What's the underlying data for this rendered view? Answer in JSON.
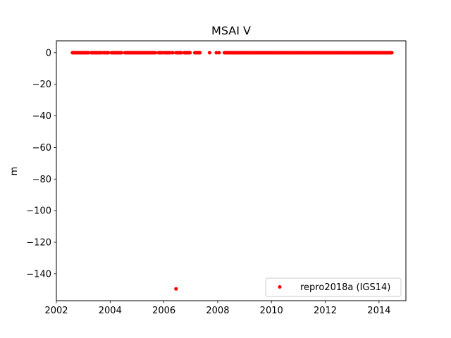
{
  "chart_data": {
    "type": "scatter",
    "title": "MSAI V",
    "xlabel": "",
    "ylabel": "m",
    "xlim": [
      2002,
      2015
    ],
    "ylim": [
      -157,
      7.5
    ],
    "xticks": [
      2002,
      2004,
      2006,
      2008,
      2010,
      2012,
      2014
    ],
    "xtick_labels": [
      "2002",
      "2004",
      "2006",
      "2008",
      "2010",
      "2012",
      "2014"
    ],
    "yticks": [
      0,
      -20,
      -40,
      -60,
      -80,
      -100,
      -120,
      -140
    ],
    "ytick_labels": [
      "0",
      "−20",
      "−40",
      "−60",
      "−80",
      "−100",
      "−120",
      "−140"
    ],
    "grid": false,
    "legend_position": "lower-right",
    "series": [
      {
        "name": "repro2018a (IGS14)",
        "color": "#ff0000",
        "marker": "circle",
        "x_ranges": [
          [
            2002.6,
            2003.2
          ],
          [
            2003.3,
            2003.7
          ],
          [
            2003.75,
            2003.95
          ],
          [
            2004.05,
            2004.45
          ],
          [
            2004.55,
            2005.7
          ],
          [
            2005.8,
            2005.95
          ],
          [
            2006.0,
            2006.25
          ],
          [
            2006.3,
            2006.35
          ],
          [
            2006.45,
            2006.65
          ],
          [
            2006.75,
            2007.0
          ],
          [
            2007.15,
            2007.35
          ],
          [
            2008.25,
            2014.5
          ]
        ],
        "isolated_points": [
          {
            "x": 2007.7,
            "y": 0
          },
          {
            "x": 2007.95,
            "y": 0
          },
          {
            "x": 2008.05,
            "y": 0
          },
          {
            "x": 2006.45,
            "y": -149.5
          }
        ],
        "y_baseline": 0
      }
    ]
  }
}
